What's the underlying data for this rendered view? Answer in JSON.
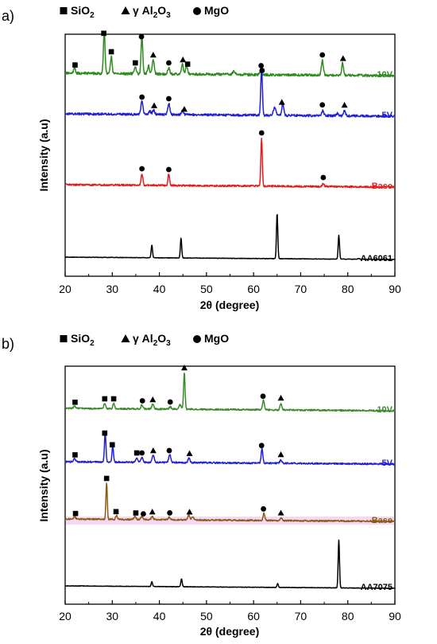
{
  "chart_data": [
    {
      "type": "line",
      "panel_label": "a)",
      "xlabel": "2θ (degree)",
      "ylabel": "Intensity (a.u)",
      "xlim": [
        20,
        90
      ],
      "xticks": [
        20,
        30,
        40,
        50,
        60,
        70,
        80,
        90
      ],
      "grid": false,
      "legend": [
        {
          "symbol": "square",
          "label": "SiO",
          "sub": "2",
          "tail": ""
        },
        {
          "symbol": "triangle",
          "label": "γ Al",
          "sub": "2",
          "tail": "O",
          "sub2": "3"
        },
        {
          "symbol": "circle",
          "label": "MgO"
        }
      ],
      "series": [
        {
          "name": "10V",
          "color": "#2e8b1e",
          "baseline": 95,
          "noise": 1.6,
          "seed": 11,
          "peaks": [
            [
              22.0,
              6,
              0.3
            ],
            [
              28.3,
              53,
              0.25
            ],
            [
              29.8,
              22,
              0.25
            ],
            [
              34.9,
              8,
              0.3
            ],
            [
              36.3,
              48,
              0.25
            ],
            [
              37.7,
              10,
              0.3
            ],
            [
              38.7,
              18,
              0.3
            ],
            [
              42.0,
              8,
              0.3
            ],
            [
              44.9,
              14,
              0.25
            ],
            [
              45.8,
              10,
              0.3
            ],
            [
              55.8,
              4,
              0.4
            ],
            [
              61.5,
              5,
              0.3
            ],
            [
              74.6,
              18,
              0.3
            ],
            [
              78.9,
              16,
              0.25
            ]
          ],
          "markers": [
            [
              "square",
              22.1
            ],
            [
              "square",
              28.2
            ],
            [
              "square",
              29.8
            ],
            [
              "square",
              34.9
            ],
            [
              "circle",
              36.2
            ],
            [
              "triangle",
              38.7
            ],
            [
              "circle",
              42.0
            ],
            [
              "triangle",
              45.0
            ],
            [
              "square",
              46.0
            ],
            [
              "circle",
              61.6
            ],
            [
              "circle",
              74.6
            ],
            [
              "triangle",
              79.0
            ]
          ]
        },
        {
          "name": "5V",
          "color": "#1f1fd6",
          "baseline": 146,
          "noise": 1.4,
          "seed": 23,
          "peaks": [
            [
              36.3,
              16,
              0.3
            ],
            [
              38.0,
              4,
              0.3
            ],
            [
              38.8,
              6,
              0.3
            ],
            [
              42.0,
              14,
              0.3
            ],
            [
              44.9,
              5,
              0.3
            ],
            [
              61.7,
              58,
              0.25
            ],
            [
              64.5,
              10,
              0.4
            ],
            [
              66.2,
              15,
              0.3
            ],
            [
              74.7,
              7,
              0.3
            ],
            [
              77.8,
              3,
              0.3
            ],
            [
              79.3,
              6,
              0.3
            ]
          ],
          "markers": [
            [
              "circle",
              36.3
            ],
            [
              "triangle",
              38.9
            ],
            [
              "circle",
              42.0
            ],
            [
              "triangle",
              45.3
            ],
            [
              "circle",
              61.8
            ],
            [
              "triangle",
              66.0
            ],
            [
              "circle",
              74.6
            ],
            [
              "triangle",
              79.3
            ]
          ]
        },
        {
          "name": "Base",
          "color": "#e51c1c",
          "baseline": 235,
          "noise": 1.1,
          "seed": 37,
          "peaks": [
            [
              36.3,
              15,
              0.25
            ],
            [
              42.0,
              14,
              0.25
            ],
            [
              61.7,
              60,
              0.22
            ],
            [
              74.8,
              4,
              0.3
            ]
          ],
          "markers": [
            [
              "circle",
              36.3
            ],
            [
              "circle",
              42.0
            ],
            [
              "circle",
              61.7
            ],
            [
              "circle",
              74.8
            ]
          ]
        },
        {
          "name": "AA6061",
          "color": "#000000",
          "baseline": 326,
          "noise": 0.3,
          "seed": 41,
          "peaks": [
            [
              38.4,
              16,
              0.2
            ],
            [
              44.6,
              25,
              0.2
            ],
            [
              65.0,
              57,
              0.2
            ],
            [
              78.1,
              30,
              0.2
            ],
            [
              82.3,
              1,
              0.3
            ]
          ],
          "markers": []
        }
      ]
    },
    {
      "type": "line",
      "panel_label": "b)",
      "xlabel": "2θ (degree)",
      "ylabel": "Intensity (a.u)",
      "xlim": [
        20,
        90
      ],
      "xticks": [
        20,
        30,
        40,
        50,
        60,
        70,
        80,
        90
      ],
      "grid": false,
      "legend": [
        {
          "symbol": "square",
          "label": "SiO",
          "sub": "2",
          "tail": ""
        },
        {
          "symbol": "triangle",
          "label": "γ Al",
          "sub": "2",
          "tail": "O",
          "sub2": "3"
        },
        {
          "symbol": "circle",
          "label": "MgO"
        }
      ],
      "series": [
        {
          "name": "10V",
          "color": "#3c8a2b",
          "baseline": 516,
          "noise": 1.0,
          "seed": 53,
          "peaks": [
            [
              22.0,
              3,
              0.3
            ],
            [
              28.4,
              7,
              0.25
            ],
            [
              30.3,
              7,
              0.25
            ],
            [
              36.3,
              5,
              0.3
            ],
            [
              38.6,
              6,
              0.3
            ],
            [
              42.3,
              3,
              0.3
            ],
            [
              44.4,
              6,
              0.3
            ],
            [
              45.3,
              46,
              0.22
            ],
            [
              62.1,
              12,
              0.25
            ],
            [
              65.8,
              8,
              0.25
            ]
          ],
          "markers": [
            [
              "square",
              22.1
            ],
            [
              "square",
              28.4
            ],
            [
              "square",
              30.3
            ],
            [
              "circle",
              36.4
            ],
            [
              "triangle",
              38.6
            ],
            [
              "circle",
              42.3
            ],
            [
              "triangle",
              45.3
            ],
            [
              "circle",
              62.0
            ],
            [
              "triangle",
              65.8
            ]
          ]
        },
        {
          "name": "5V",
          "color": "#1f1fd6",
          "baseline": 583,
          "noise": 1.0,
          "seed": 61,
          "peaks": [
            [
              22.0,
              4,
              0.3
            ],
            [
              28.5,
              38,
              0.22
            ],
            [
              30.1,
              20,
              0.22
            ],
            [
              35.2,
              6,
              0.3
            ],
            [
              36.3,
              6,
              0.3
            ],
            [
              38.7,
              9,
              0.3
            ],
            [
              42.2,
              10,
              0.3
            ],
            [
              46.3,
              6,
              0.3
            ],
            [
              61.8,
              18,
              0.25
            ],
            [
              65.8,
              4,
              0.3
            ]
          ],
          "markers": [
            [
              "square",
              22.1
            ],
            [
              "square",
              28.4
            ],
            [
              "square",
              30.0
            ],
            [
              "square",
              35.2
            ],
            [
              "circle",
              36.3
            ],
            [
              "triangle",
              38.7
            ],
            [
              "circle",
              42.1
            ],
            [
              "triangle",
              46.4
            ],
            [
              "circle",
              61.7
            ],
            [
              "triangle",
              65.8
            ]
          ]
        },
        {
          "name": "Base",
          "color": "#8a5a12",
          "baseline": 655,
          "noise": 0.9,
          "seed": 71,
          "band": "#f2cdf0",
          "peaks": [
            [
              22.0,
              3,
              0.3
            ],
            [
              28.8,
              46,
              0.2
            ],
            [
              30.9,
              5,
              0.25
            ],
            [
              34.8,
              4,
              0.3
            ],
            [
              36.3,
              4,
              0.3
            ],
            [
              38.5,
              4,
              0.3
            ],
            [
              42.1,
              3,
              0.3
            ],
            [
              46.2,
              6,
              0.3
            ],
            [
              47.1,
              4,
              0.3
            ],
            [
              62.2,
              9,
              0.25
            ],
            [
              65.9,
              3,
              0.3
            ]
          ],
          "markers": [
            [
              "square",
              22.2
            ],
            [
              "square",
              28.8
            ],
            [
              "square",
              30.8
            ],
            [
              "square",
              35.0
            ],
            [
              "circle",
              36.6
            ],
            [
              "triangle",
              38.5
            ],
            [
              "circle",
              42.2
            ],
            [
              "triangle",
              46.4
            ],
            [
              "circle",
              62.1
            ],
            [
              "triangle",
              65.8
            ]
          ]
        },
        {
          "name": "AA7075",
          "color": "#000000",
          "baseline": 739,
          "noise": 0.3,
          "seed": 83,
          "peaks": [
            [
              38.4,
              6,
              0.2
            ],
            [
              44.7,
              10,
              0.2
            ],
            [
              65.1,
              5,
              0.2
            ],
            [
              78.1,
              60,
              0.2
            ]
          ],
          "markers": []
        }
      ]
    }
  ]
}
